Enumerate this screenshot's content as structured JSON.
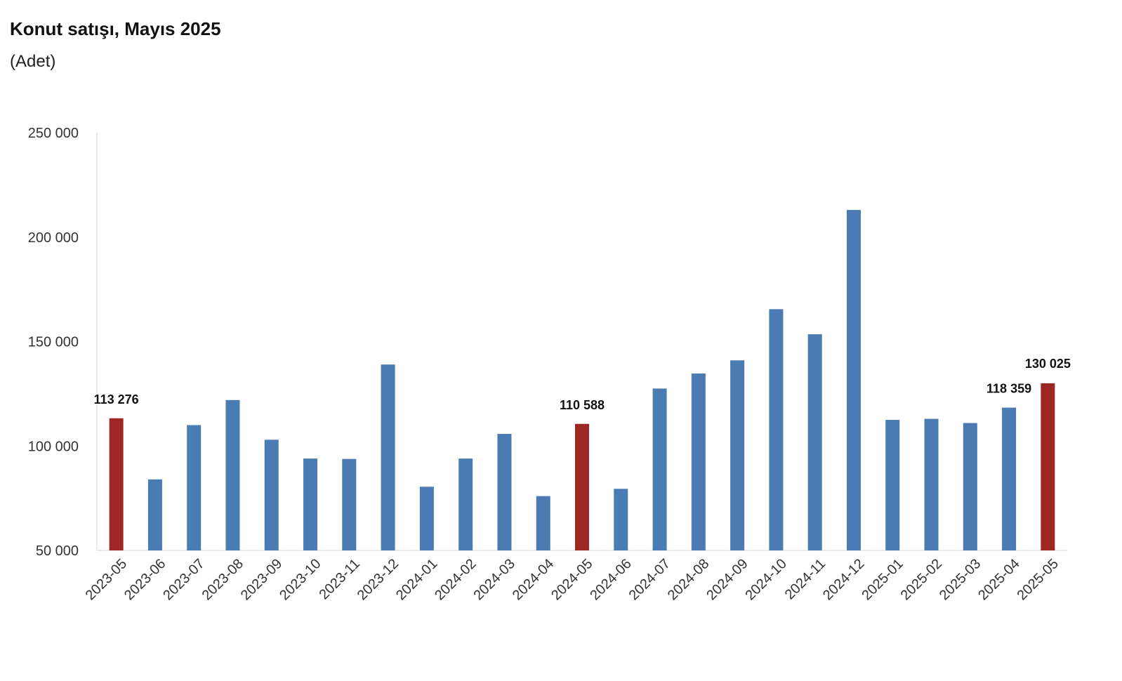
{
  "chart_data": {
    "type": "bar",
    "title": "Konut satışı, Mayıs 2025",
    "subtitle": "(Adet)",
    "xlabel": "",
    "ylabel": "",
    "ylim": [
      50000,
      250000
    ],
    "yticks": [
      50000,
      100000,
      150000,
      200000,
      250000
    ],
    "ytick_labels": [
      "50 000",
      "100 000",
      "150 000",
      "200 000",
      "250 000"
    ],
    "grid": false,
    "colors": {
      "default": "#4a7bb2",
      "highlight": "#9e2625"
    },
    "categories": [
      "2023-05",
      "2023-06",
      "2023-07",
      "2023-08",
      "2023-09",
      "2023-10",
      "2023-11",
      "2023-12",
      "2024-01",
      "2024-02",
      "2024-03",
      "2024-04",
      "2024-05",
      "2024-06",
      "2024-07",
      "2024-08",
      "2024-09",
      "2024-10",
      "2024-11",
      "2024-12",
      "2025-01",
      "2025-02",
      "2025-03",
      "2025-04",
      "2025-05"
    ],
    "values": [
      113276,
      84000,
      110000,
      122000,
      103000,
      94000,
      93800,
      139000,
      80500,
      94000,
      105800,
      76000,
      110588,
      79500,
      127500,
      134700,
      141000,
      165500,
      153500,
      213000,
      112500,
      113000,
      111000,
      118359,
      130025
    ],
    "highlight": [
      true,
      false,
      false,
      false,
      false,
      false,
      false,
      false,
      false,
      false,
      false,
      false,
      true,
      false,
      false,
      false,
      false,
      false,
      false,
      false,
      false,
      false,
      false,
      false,
      true
    ],
    "data_labels": [
      {
        "category": "2023-05",
        "text": "113 276"
      },
      {
        "category": "2024-05",
        "text": "110 588"
      },
      {
        "category": "2025-04",
        "text": "118 359"
      },
      {
        "category": "2025-05",
        "text": "130 025"
      }
    ]
  }
}
